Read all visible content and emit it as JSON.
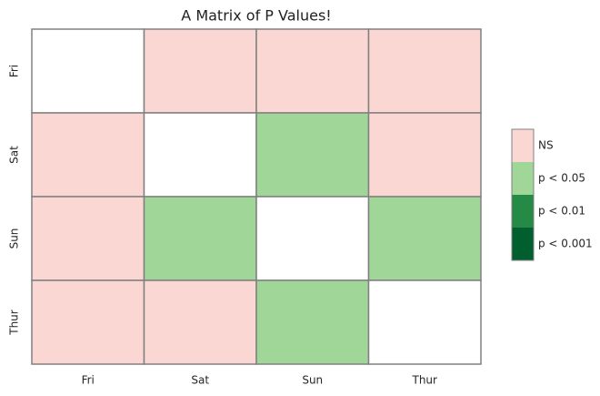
{
  "chart_data": {
    "type": "heatmap",
    "title": "A Matrix of P Values!",
    "x_categories": [
      "Fri",
      "Sat",
      "Sun",
      "Thur"
    ],
    "y_categories": [
      "Fri",
      "Sat",
      "Sun",
      "Thur"
    ],
    "values": [
      [
        null,
        "NS",
        "NS",
        "NS"
      ],
      [
        "NS",
        null,
        "p < 0.05",
        "NS"
      ],
      [
        "NS",
        "p < 0.05",
        null,
        "p < 0.05"
      ],
      [
        "NS",
        "NS",
        "p < 0.05",
        null
      ]
    ],
    "legend": [
      {
        "label": "NS",
        "color": "#fbd7d4"
      },
      {
        "label": "p < 0.05",
        "color": "#a1d699"
      },
      {
        "label": "p < 0.01",
        "color": "#248a46"
      },
      {
        "label": "p < 0.001",
        "color": "#005e2f"
      }
    ]
  }
}
